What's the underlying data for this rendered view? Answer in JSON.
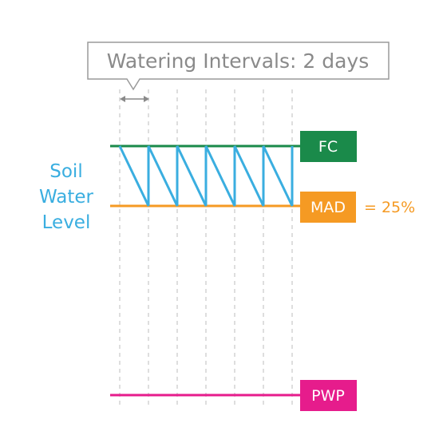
{
  "callout": {
    "text": "Watering Intervals: 2 days"
  },
  "y_label": {
    "lines": [
      "Soil",
      "Water",
      "Level"
    ]
  },
  "levels": {
    "fc": {
      "label": "FC",
      "color": "#1a8a4a"
    },
    "mad": {
      "label": "MAD",
      "value_text": "= 25%",
      "color": "#f59a23"
    },
    "pwp": {
      "label": "PWP",
      "color": "#e61c8c"
    }
  },
  "sawtooth": {
    "color": "#3aaee0",
    "cycles": 6
  },
  "grid_color": "#c8c8c8"
}
